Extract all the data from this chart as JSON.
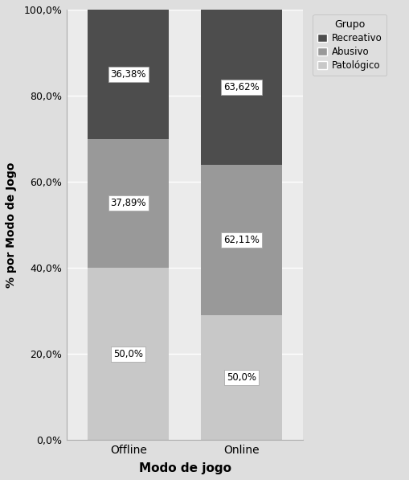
{
  "categories": [
    "Offline",
    "Online"
  ],
  "segment_order": [
    "Patológico",
    "Abusivo",
    "Recreativo"
  ],
  "stack_heights": {
    "Offline": [
      40.0,
      30.0,
      30.0
    ],
    "Online": [
      29.0,
      35.0,
      36.0
    ]
  },
  "colors": {
    "Recreativo": "#4d4d4d",
    "Abusivo": "#999999",
    "Patológico": "#c8c8c8"
  },
  "labels": {
    "Offline": {
      "Patológico": "50,0%",
      "Abusivo": "37,89%",
      "Recreativo": "36,38%"
    },
    "Online": {
      "Patológico": "50,0%",
      "Abusivo": "62,11%",
      "Recreativo": "63,62%"
    }
  },
  "label_positions": {
    "Offline": {
      "Patológico": 20.0,
      "Abusivo": 55.0,
      "Recreativo": 85.0
    },
    "Online": {
      "Patológico": 14.5,
      "Abusivo": 46.5,
      "Recreativo": 82.0
    }
  },
  "xlabel": "Modo de jogo",
  "ylabel": "% por Modo de Jogo",
  "legend_title": "Grupo",
  "legend_order": [
    "Recreativo",
    "Abusivo",
    "Patológico"
  ],
  "ylim": [
    0,
    100
  ],
  "yticks": [
    0,
    20,
    40,
    60,
    80,
    100
  ],
  "ytick_labels": [
    "0,0%",
    "20,0%",
    "40,0%",
    "60,0%",
    "80,0%",
    "100,0%"
  ],
  "bg_color": "#dedede",
  "plot_bg_color": "#ebebeb",
  "bar_width": 0.72,
  "x_positions": [
    0,
    1
  ],
  "xlim": [
    -0.55,
    1.55
  ]
}
